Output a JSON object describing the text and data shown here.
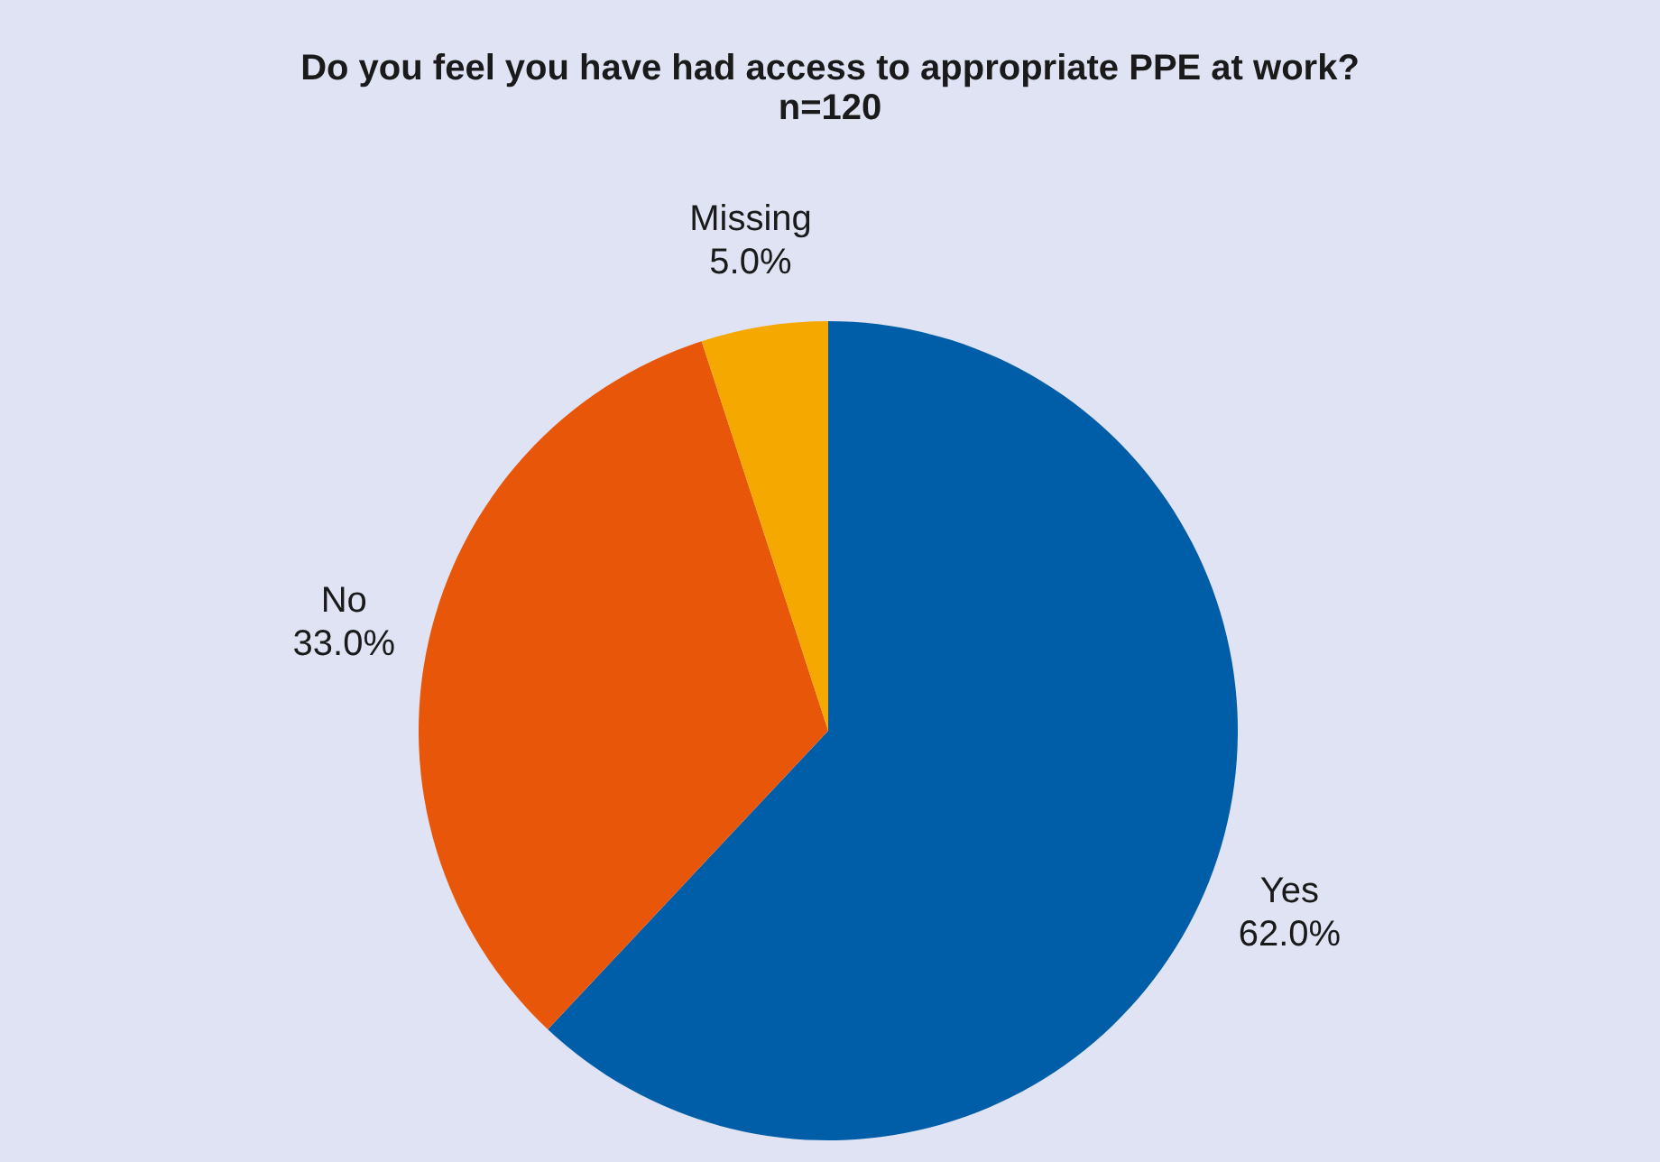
{
  "chart_data": {
    "type": "pie",
    "title": "Do you feel you have had access to appropriate PPE at work?",
    "subtitle": "n=120",
    "categories": [
      "Yes",
      "No",
      "Missing"
    ],
    "values": [
      62,
      33,
      5
    ],
    "colors": [
      "#005ea8",
      "#e8560a",
      "#f5a800"
    ],
    "value_labels": [
      "62.0%",
      "33.0%",
      "5.0%"
    ],
    "legend": false
  }
}
